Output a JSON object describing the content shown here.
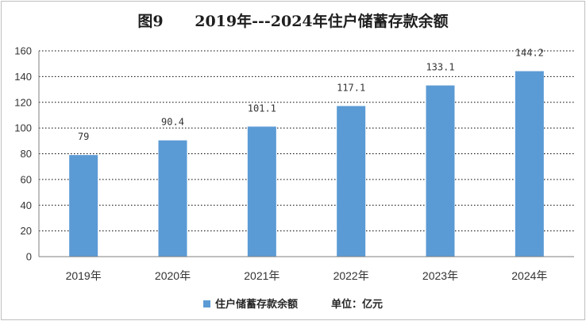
{
  "chart_data": {
    "type": "bar",
    "title": "图9      2019年---2024年住户储蓄存款余额",
    "categories": [
      "2019年",
      "2020年",
      "2021年",
      "2022年",
      "2023年",
      "2024年"
    ],
    "series": [
      {
        "name": "住户储蓄存款余额",
        "values": [
          79,
          90.4,
          101.1,
          117.1,
          133.1,
          144.2
        ],
        "labels": [
          "79",
          "90.4",
          "101.1",
          "117.1",
          "133.1",
          "144.2"
        ]
      }
    ],
    "ylim": [
      0,
      160
    ],
    "yticks": [
      "0",
      "20",
      "40",
      "60",
      "80",
      "100",
      "120",
      "140",
      "160"
    ],
    "grid": true,
    "legend": "bottom-center",
    "unit_note": "单位：亿元",
    "bar_color": "#5b9bd5"
  }
}
